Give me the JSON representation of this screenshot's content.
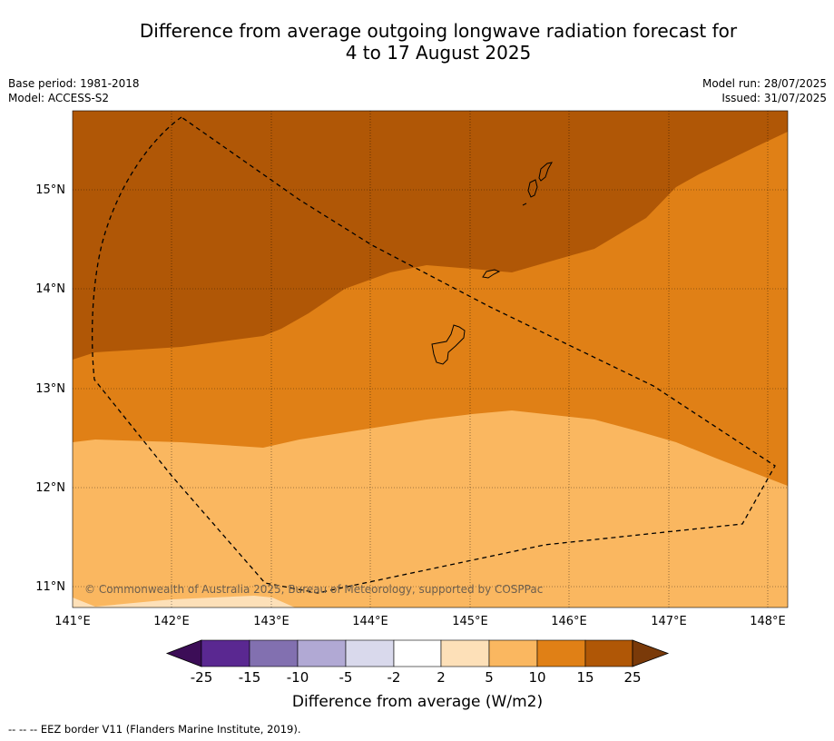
{
  "title_line1": "Difference from average outgoing longwave radiation forecast for",
  "title_line2": "4 to 17 August 2025",
  "meta_left": {
    "base_period": "Base period: 1981-2018",
    "model": "Model: ACCESS-S2"
  },
  "meta_right": {
    "model_run": "Model run: 28/07/2025",
    "issued": "Issued: 31/07/2025"
  },
  "copyright": "© Commonwealth of Australia 2025, Bureau of Meteorology, supported by COSPPac",
  "lon_labels": [
    "141°E",
    "142°E",
    "143°E",
    "144°E",
    "145°E",
    "146°E",
    "147°E",
    "148°E"
  ],
  "lat_labels": [
    "15°N",
    "14°N",
    "13°N",
    "12°N",
    "11°N"
  ],
  "colorbar": {
    "label": "Difference from average (W/m2)",
    "ticks": [
      "-25",
      "-15",
      "-10",
      "-5",
      "-2",
      "2",
      "5",
      "10",
      "15",
      "25"
    ],
    "colors": [
      "#3c0d57",
      "#5a2891",
      "#8270b0",
      "#b1a9d4",
      "#d9d9ec",
      "#ffffff",
      "#fde0b8",
      "#fab760",
      "#e08016",
      "#b05706",
      "#7a3a09"
    ]
  },
  "footer": "--  --  -- EEZ border V11 (Flanders Marine Institute, 2019)."
}
